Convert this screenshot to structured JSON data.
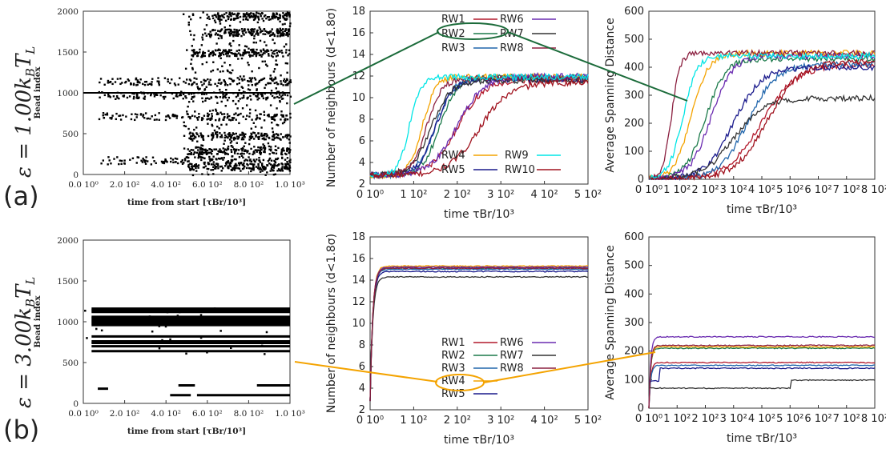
{
  "row_labels": [
    {
      "epsilon": "ε = 1.00k",
      "sub": "B",
      "sym": "T",
      "sub2": "L",
      "panel": "(a)"
    },
    {
      "epsilon": "ε = 3.00k",
      "sub": "B",
      "sym": "T",
      "sub2": "L",
      "panel": "(b)"
    }
  ],
  "colors": {
    "RW1": "#b2182b",
    "RW2": "#1b7a4a",
    "RW3": "#2166ac",
    "RW4": "#f4a300",
    "RW5": "#1a1a8c",
    "RW6": "#6a2bb0",
    "RW7": "#333333",
    "RW8": "#8b2040",
    "RW9": "#00e5e5",
    "RW10": "#a0121e",
    "callout_a": "#1b6b3a",
    "callout_b": "#f4a300"
  },
  "chart_data": [
    {
      "id": "a-left",
      "type": "scatter",
      "ylabel": "Bead index",
      "xlabel": "time from start [τBr/10³]",
      "xticks": [
        "0.0 10⁰",
        "2.0 10²",
        "4.0 10²",
        "6.0 10²",
        "8.0 10²",
        "1.0 10³"
      ],
      "yticks": [
        "0",
        "500",
        "1000",
        "1500",
        "2000"
      ],
      "xlim": [
        0,
        1000
      ],
      "ylim": [
        0,
        2000
      ],
      "bands": [
        [
          70,
          1000,
          1150
        ],
        [
          70,
          1000,
          980
        ],
        [
          70,
          1000,
          720
        ],
        [
          80,
          1000,
          180
        ],
        [
          520,
          1000,
          1500
        ],
        [
          600,
          1000,
          1750
        ],
        [
          620,
          1000,
          1950
        ],
        [
          500,
          1000,
          480
        ],
        [
          500,
          1000,
          300
        ],
        [
          500,
          1000,
          100
        ]
      ]
    },
    {
      "id": "a-mid",
      "type": "line",
      "ylabel": "Number of neighbours (d<1.8σ)",
      "xlabel": "time τBr/10³",
      "xticks": [
        "0 10⁰",
        "1 10²",
        "2 10²",
        "3 10²",
        "4 10²",
        "5 10²"
      ],
      "yticks": [
        "2",
        "4",
        "6",
        "8",
        "10",
        "12",
        "14",
        "16",
        "18"
      ],
      "xlim": [
        0,
        500
      ],
      "ylim": [
        2,
        18
      ],
      "legend_top": [
        "RW1",
        "RW2",
        "RW3",
        "RW6",
        "RW7",
        "RW8"
      ],
      "legend_bottom": [
        "RW4",
        "RW5",
        "RW9",
        "RW10"
      ],
      "series": [
        {
          "name": "RW1",
          "rise": 200,
          "width": 120,
          "plateau": 11.6
        },
        {
          "name": "RW2",
          "rise": 160,
          "width": 80,
          "plateau": 11.9
        },
        {
          "name": "RW3",
          "rise": 150,
          "width": 80,
          "plateau": 11.8
        },
        {
          "name": "RW4",
          "rise": 120,
          "width": 60,
          "plateau": 11.9
        },
        {
          "name": "RW5",
          "rise": 150,
          "width": 80,
          "plateau": 11.7
        },
        {
          "name": "RW6",
          "rise": 200,
          "width": 120,
          "plateau": 12.0
        },
        {
          "name": "RW7",
          "rise": 140,
          "width": 90,
          "plateau": 11.6
        },
        {
          "name": "RW8",
          "rise": 130,
          "width": 70,
          "plateau": 11.8
        },
        {
          "name": "RW9",
          "rise": 90,
          "width": 50,
          "plateau": 11.9
        },
        {
          "name": "RW10",
          "rise": 250,
          "width": 140,
          "plateau": 11.4
        }
      ]
    },
    {
      "id": "a-right",
      "type": "line",
      "ylabel": "Average Spanning Distance",
      "xlabel": "time τBr/10³",
      "xticks": [
        "0 10⁰",
        "1 10²",
        "2 10²",
        "3 10²",
        "4 10²",
        "5 10²",
        "6 10²",
        "7 10²",
        "8 10²"
      ],
      "yticks": [
        "0",
        "100",
        "200",
        "300",
        "400",
        "500",
        "600"
      ],
      "xlim": [
        0,
        800
      ],
      "ylim": [
        0,
        600
      ],
      "series": [
        {
          "name": "RW1",
          "rise": 400,
          "width": 250,
          "plateau": 410
        },
        {
          "name": "RW2",
          "rise": 200,
          "width": 140,
          "plateau": 430
        },
        {
          "name": "RW3",
          "rise": 350,
          "width": 200,
          "plateau": 410
        },
        {
          "name": "RW4",
          "rise": 150,
          "width": 120,
          "plateau": 450
        },
        {
          "name": "RW5",
          "rise": 300,
          "width": 200,
          "plateau": 400
        },
        {
          "name": "RW6",
          "rise": 220,
          "width": 150,
          "plateau": 440
        },
        {
          "name": "RW7",
          "rise": 300,
          "width": 220,
          "plateau": 290
        },
        {
          "name": "RW8",
          "rise": 80,
          "width": 60,
          "plateau": 450
        },
        {
          "name": "RW9",
          "rise": 120,
          "width": 100,
          "plateau": 440
        },
        {
          "name": "RW10",
          "rise": 420,
          "width": 230,
          "plateau": 420
        }
      ]
    },
    {
      "id": "b-left",
      "type": "scatter",
      "ylabel": "Bead index",
      "xlabel": "time from start [τBr/10³]",
      "xticks": [
        "0.0 10⁰",
        "2.0 10²",
        "4.0 10²",
        "6.0 10²",
        "8.0 10²",
        "1.0 10³"
      ],
      "yticks": [
        "0",
        "500",
        "1000",
        "1500",
        "2000"
      ],
      "xlim": [
        0,
        1000
      ],
      "ylim": [
        0,
        2000
      ],
      "lines": [
        [
          40,
          1000,
          1160
        ],
        [
          40,
          1000,
          1140
        ],
        [
          40,
          1000,
          1120
        ],
        [
          40,
          1000,
          1060
        ],
        [
          40,
          1000,
          1040
        ],
        [
          40,
          1000,
          1020
        ],
        [
          40,
          1000,
          1000
        ],
        [
          40,
          1000,
          980
        ],
        [
          40,
          1000,
          960
        ],
        [
          40,
          1000,
          820
        ],
        [
          40,
          1000,
          760
        ],
        [
          40,
          1000,
          740
        ],
        [
          40,
          1000,
          700
        ],
        [
          40,
          1000,
          640
        ],
        [
          460,
          540,
          220
        ],
        [
          840,
          1000,
          220
        ],
        [
          420,
          520,
          100
        ],
        [
          550,
          1000,
          100
        ],
        [
          70,
          120,
          180
        ]
      ]
    },
    {
      "id": "b-mid",
      "type": "line",
      "ylabel": "Number of neighbours (d<1.8σ)",
      "xlabel": "time τBr/10³",
      "xticks": [
        "0 10⁰",
        "1 10²",
        "2 10²",
        "3 10²",
        "4 10²",
        "5 10²"
      ],
      "yticks": [
        "2",
        "4",
        "6",
        "8",
        "10",
        "12",
        "14",
        "16",
        "18"
      ],
      "xlim": [
        0,
        500
      ],
      "ylim": [
        2,
        18
      ],
      "legend": [
        "RW1",
        "RW2",
        "RW3",
        "RW4",
        "RW5",
        "RW6",
        "RW7",
        "RW8"
      ],
      "series": [
        {
          "name": "RW1",
          "plateau": 15.2
        },
        {
          "name": "RW2",
          "plateau": 15.1
        },
        {
          "name": "RW3",
          "plateau": 15.0
        },
        {
          "name": "RW4",
          "plateau": 15.3
        },
        {
          "name": "RW5",
          "plateau": 14.8
        },
        {
          "name": "RW6",
          "plateau": 15.2
        },
        {
          "name": "RW7",
          "plateau": 14.3
        },
        {
          "name": "RW8",
          "plateau": 15.1
        }
      ]
    },
    {
      "id": "b-right",
      "type": "line",
      "ylabel": "Average Spanning Distance",
      "xlabel": "time τBr/10³",
      "xticks": [
        "0 10⁰",
        "1 10²",
        "2 10²",
        "3 10²",
        "4 10²",
        "5 10²",
        "6 10²",
        "7 10²",
        "8 10²"
      ],
      "yticks": [
        "0",
        "100",
        "200",
        "300",
        "400",
        "500",
        "600"
      ],
      "xlim": [
        0,
        800
      ],
      "ylim": [
        0,
        600
      ],
      "series": [
        {
          "name": "RW1",
          "plateau": 160
        },
        {
          "name": "RW2",
          "plateau": 210
        },
        {
          "name": "RW3",
          "plateau": 150
        },
        {
          "name": "RW4",
          "plateau": 215
        },
        {
          "name": "RW5",
          "plateau": 140
        },
        {
          "name": "RW6",
          "plateau": 250
        },
        {
          "name": "RW7",
          "plateau": 70
        },
        {
          "name": "RW8",
          "plateau": 220
        }
      ]
    }
  ]
}
